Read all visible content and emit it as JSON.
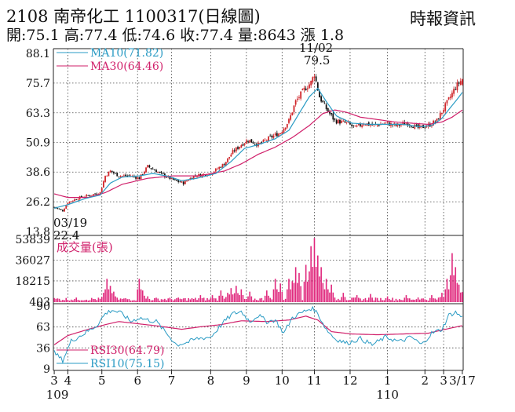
{
  "header": {
    "title": "2108  南帝化工 1100317(日線圖)",
    "source": "時報資訊",
    "summary": "開:75.1 高:77.4 低:74.6 收:77.4 量:8643 漲 1.8"
  },
  "colors": {
    "up": "#d0262b",
    "down": "#111111",
    "ma10": "#2a9bc4",
    "ma30": "#d01f6a",
    "volume": "#e0287d",
    "rsi30": "#d01f6a",
    "rsi10": "#2a9bc4",
    "grid": "#444444"
  },
  "chart_data": [
    {
      "type": "line",
      "name": "price",
      "ylim": [
        13.8,
        88.1
      ],
      "yticks": [
        "88.1",
        "75.7",
        "63.3",
        "50.9",
        "38.6",
        "26.2",
        "13.8"
      ],
      "legend": [
        "MA10(71.82)",
        "MA30(64.46)"
      ],
      "annotations": {
        "high_date": "11/02",
        "high_value": "79.5",
        "low_date": "03/19",
        "low_value": "22.4"
      },
      "months": [
        {
          "label": "3",
          "day": 0
        },
        {
          "label": "4",
          "day": 8
        },
        {
          "label": "5",
          "day": 28
        },
        {
          "label": "6",
          "day": 49
        },
        {
          "label": "7",
          "day": 69
        },
        {
          "label": "8",
          "day": 92
        },
        {
          "label": "9",
          "day": 113
        },
        {
          "label": "10",
          "day": 134
        },
        {
          "label": "11",
          "day": 153
        },
        {
          "label": "12",
          "day": 174
        },
        {
          "label": "1",
          "day": 196
        },
        {
          "label": "2",
          "day": 218
        },
        {
          "label": "3",
          "day": 229
        },
        {
          "label": "3/17",
          "day": 240
        }
      ],
      "years": [
        {
          "label": "109",
          "day": 0
        },
        {
          "label": "110",
          "day": 196
        }
      ],
      "price_anchors": [
        [
          0,
          24
        ],
        [
          5,
          22.4
        ],
        [
          8,
          26
        ],
        [
          15,
          28
        ],
        [
          27,
          30
        ],
        [
          30,
          37
        ],
        [
          33,
          39
        ],
        [
          38,
          37
        ],
        [
          45,
          37
        ],
        [
          50,
          36
        ],
        [
          55,
          41
        ],
        [
          60,
          39
        ],
        [
          65,
          37
        ],
        [
          71,
          35
        ],
        [
          76,
          34
        ],
        [
          82,
          37
        ],
        [
          92,
          38
        ],
        [
          100,
          42
        ],
        [
          105,
          47
        ],
        [
          110,
          50
        ],
        [
          114,
          52
        ],
        [
          120,
          50
        ],
        [
          127,
          53
        ],
        [
          133,
          55
        ],
        [
          138,
          60
        ],
        [
          142,
          68
        ],
        [
          147,
          73
        ],
        [
          151,
          76
        ],
        [
          153,
          79.5
        ],
        [
          156,
          70
        ],
        [
          159,
          66
        ],
        [
          165,
          60
        ],
        [
          172,
          59
        ],
        [
          177,
          57
        ],
        [
          182,
          59
        ],
        [
          188,
          58
        ],
        [
          195,
          59
        ],
        [
          201,
          58
        ],
        [
          208,
          59
        ],
        [
          214,
          57
        ],
        [
          220,
          58
        ],
        [
          225,
          60
        ],
        [
          229,
          65
        ],
        [
          233,
          70
        ],
        [
          236,
          74
        ],
        [
          240,
          77.4
        ]
      ],
      "ma10_anchors": [
        [
          0,
          23.5
        ],
        [
          8,
          25
        ],
        [
          18,
          27.5
        ],
        [
          27,
          29
        ],
        [
          33,
          34
        ],
        [
          40,
          36.5
        ],
        [
          50,
          37
        ],
        [
          58,
          38
        ],
        [
          66,
          37
        ],
        [
          75,
          35
        ],
        [
          84,
          36
        ],
        [
          95,
          38
        ],
        [
          104,
          43
        ],
        [
          112,
          48.5
        ],
        [
          120,
          50
        ],
        [
          130,
          52.5
        ],
        [
          138,
          56
        ],
        [
          144,
          63
        ],
        [
          150,
          70
        ],
        [
          155,
          73.5
        ],
        [
          160,
          68
        ],
        [
          166,
          62
        ],
        [
          175,
          59
        ],
        [
          185,
          58.5
        ],
        [
          195,
          58.5
        ],
        [
          205,
          58.5
        ],
        [
          215,
          57.5
        ],
        [
          222,
          58
        ],
        [
          228,
          61
        ],
        [
          233,
          65.5
        ],
        [
          237,
          69
        ],
        [
          240,
          71.82
        ]
      ],
      "ma30_anchors": [
        [
          0,
          29.5
        ],
        [
          8,
          28
        ],
        [
          20,
          28
        ],
        [
          30,
          30
        ],
        [
          40,
          33.5
        ],
        [
          55,
          36
        ],
        [
          70,
          37
        ],
        [
          85,
          37
        ],
        [
          100,
          39
        ],
        [
          110,
          42
        ],
        [
          120,
          46
        ],
        [
          130,
          49
        ],
        [
          140,
          53
        ],
        [
          150,
          58
        ],
        [
          158,
          63
        ],
        [
          165,
          64.5
        ],
        [
          172,
          63.5
        ],
        [
          180,
          61.5
        ],
        [
          190,
          60.5
        ],
        [
          200,
          59.5
        ],
        [
          210,
          59
        ],
        [
          220,
          58.5
        ],
        [
          228,
          59.5
        ],
        [
          234,
          61.5
        ],
        [
          240,
          64.46
        ]
      ]
    },
    {
      "type": "bar",
      "name": "volume",
      "title": "成交量(張)",
      "ylim": [
        0,
        53839
      ],
      "yticks": [
        "53839",
        "36027",
        "18215",
        "403"
      ],
      "max_value": 53839,
      "bursts": [
        [
          29,
          8000
        ],
        [
          31,
          20000
        ],
        [
          33,
          14000
        ],
        [
          35,
          9000
        ],
        [
          50,
          20000
        ],
        [
          52,
          10000
        ],
        [
          55,
          5000
        ],
        [
          86,
          6000
        ],
        [
          93,
          6000
        ],
        [
          98,
          10000
        ],
        [
          102,
          8000
        ],
        [
          104,
          12000
        ],
        [
          107,
          14000
        ],
        [
          110,
          11000
        ],
        [
          115,
          9000
        ],
        [
          125,
          10000
        ],
        [
          130,
          20000
        ],
        [
          133,
          16000
        ],
        [
          138,
          20000
        ],
        [
          140,
          18000
        ],
        [
          142,
          30000
        ],
        [
          144,
          25000
        ],
        [
          148,
          32000
        ],
        [
          151,
          48000
        ],
        [
          153,
          55000
        ],
        [
          155,
          40000
        ],
        [
          157,
          30000
        ],
        [
          160,
          20000
        ],
        [
          163,
          15000
        ],
        [
          170,
          8000
        ],
        [
          178,
          6000
        ],
        [
          186,
          7000
        ],
        [
          196,
          5000
        ],
        [
          207,
          6000
        ],
        [
          214,
          4000
        ],
        [
          222,
          6000
        ],
        [
          228,
          8000
        ],
        [
          231,
          20000
        ],
        [
          234,
          42000
        ],
        [
          236,
          30000
        ],
        [
          238,
          15000
        ],
        [
          240,
          8643
        ]
      ]
    },
    {
      "type": "line",
      "name": "rsi",
      "ylim": [
        9,
        90
      ],
      "yticks": [
        "90",
        "63",
        "36",
        "9"
      ],
      "legend": [
        "RSI30(64.79)",
        "RSI10(75.15)"
      ],
      "rsi30_anchors": [
        [
          0,
          40
        ],
        [
          8,
          52
        ],
        [
          20,
          60
        ],
        [
          30,
          66
        ],
        [
          38,
          70
        ],
        [
          50,
          67
        ],
        [
          62,
          64
        ],
        [
          75,
          60
        ],
        [
          85,
          63
        ],
        [
          98,
          66
        ],
        [
          110,
          71
        ],
        [
          125,
          70
        ],
        [
          138,
          72
        ],
        [
          148,
          77
        ],
        [
          155,
          72
        ],
        [
          163,
          57
        ],
        [
          175,
          54
        ],
        [
          190,
          53
        ],
        [
          205,
          54
        ],
        [
          220,
          55
        ],
        [
          230,
          60
        ],
        [
          240,
          64.79
        ]
      ],
      "rsi10_anchors": [
        [
          0,
          30
        ],
        [
          5,
          20
        ],
        [
          10,
          45
        ],
        [
          18,
          55
        ],
        [
          25,
          65
        ],
        [
          30,
          80
        ],
        [
          34,
          85
        ],
        [
          40,
          80
        ],
        [
          45,
          70
        ],
        [
          50,
          75
        ],
        [
          55,
          72
        ],
        [
          60,
          70
        ],
        [
          66,
          55
        ],
        [
          72,
          40
        ],
        [
          78,
          43
        ],
        [
          84,
          48
        ],
        [
          92,
          50
        ],
        [
          100,
          70
        ],
        [
          105,
          80
        ],
        [
          110,
          83
        ],
        [
          115,
          70
        ],
        [
          120,
          78
        ],
        [
          125,
          70
        ],
        [
          130,
          72
        ],
        [
          135,
          55
        ],
        [
          140,
          75
        ],
        [
          146,
          82
        ],
        [
          152,
          88
        ],
        [
          155,
          80
        ],
        [
          160,
          60
        ],
        [
          165,
          48
        ],
        [
          172,
          42
        ],
        [
          180,
          48
        ],
        [
          187,
          40
        ],
        [
          195,
          50
        ],
        [
          203,
          44
        ],
        [
          210,
          50
        ],
        [
          216,
          40
        ],
        [
          222,
          55
        ],
        [
          228,
          60
        ],
        [
          232,
          78
        ],
        [
          236,
          82
        ],
        [
          240,
          75.15
        ]
      ]
    }
  ]
}
